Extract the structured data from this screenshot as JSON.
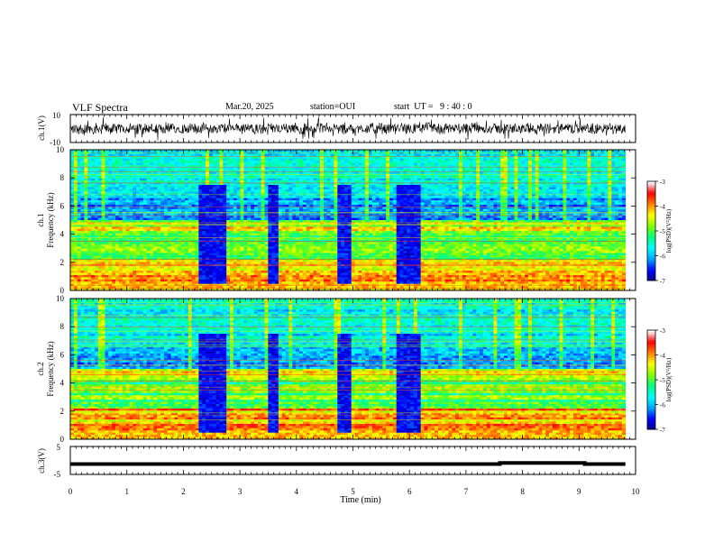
{
  "header": {
    "title": "VLF Spectra",
    "date": "Mar.20, 2025",
    "station": "station=OUI",
    "start": "start  UT =   9 : 40 : 0"
  },
  "chart_data": [
    {
      "type": "line",
      "name": "ch1-waveform",
      "ylabel": "ch.1(V)",
      "ylim": [
        -10,
        10
      ],
      "yticks": [
        "10",
        "-10"
      ],
      "xlim": [
        0,
        10
      ],
      "note_series": "dense oscillating waveform, amplitude roughly ±4 V, bursts up to ±8 V"
    },
    {
      "type": "heatmap",
      "name": "ch1-spectrogram",
      "ylabel": "ch.1\nFrequency (kHz)",
      "ylabel_line1": "ch.1",
      "ylabel_line2": "Frequency (kHz)",
      "ylim": [
        0,
        10
      ],
      "yticks": [
        "0",
        "2",
        "4",
        "6",
        "8",
        "10"
      ],
      "xlim": [
        0,
        10.0
      ],
      "quiet_intervals_min": [
        [
          2.3,
          2.75
        ],
        [
          3.5,
          3.7
        ],
        [
          4.75,
          4.95
        ],
        [
          5.75,
          6.2
        ]
      ],
      "colorbar": {
        "label": "log(PSD)(V²/Hz)",
        "ticks": [
          "-3",
          "-4",
          "-5",
          "-6",
          "-7"
        ],
        "range": [
          -7,
          -3
        ]
      }
    },
    {
      "type": "heatmap",
      "name": "ch2-spectrogram",
      "ylabel_line1": "ch.2",
      "ylabel_line2": "Frequency (kHz)",
      "ylim": [
        0,
        10
      ],
      "yticks": [
        "0",
        "2",
        "4",
        "6",
        "8",
        "10"
      ],
      "xlim": [
        0,
        10.0
      ],
      "quiet_intervals_min": [
        [
          2.3,
          2.75
        ],
        [
          3.5,
          3.7
        ],
        [
          4.75,
          4.95
        ],
        [
          5.75,
          6.2
        ]
      ],
      "colorbar": {
        "label": "log(PSD)(V²/Hz)",
        "ticks": [
          "-3",
          "-4",
          "-5",
          "-6",
          "-7"
        ],
        "range": [
          -7,
          -3
        ]
      }
    },
    {
      "type": "line",
      "name": "ch3-level",
      "ylabel": "ch.3(V)",
      "ylim": [
        -5,
        5
      ],
      "yticks": [
        "5",
        "-5"
      ],
      "x": [
        0,
        7.6,
        7.6,
        9.1,
        9.1,
        9.82
      ],
      "y": [
        -1.3,
        -1.3,
        -0.9,
        -0.9,
        -1.3,
        -1.3
      ],
      "xlabel": "Time (min)",
      "xticks": [
        "0",
        "1",
        "2",
        "3",
        "4",
        "5",
        "6",
        "7",
        "8",
        "9",
        "10"
      ]
    }
  ],
  "colors": {
    "colormap": [
      "#000080",
      "#0000ff",
      "#00a0ff",
      "#00ffff",
      "#00ff80",
      "#80ff00",
      "#ffff00",
      "#ff8000",
      "#ff0000",
      "#ffffff"
    ]
  }
}
